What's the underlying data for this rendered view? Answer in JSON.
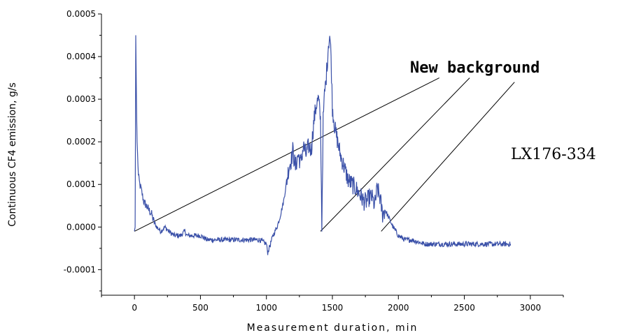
{
  "chart_data": {
    "type": "line",
    "title": "",
    "xlabel": "Measurement duration, min",
    "ylabel": "Continuous CF4 emission, g/s",
    "xlim": [
      -250,
      3250
    ],
    "ylim": [
      -0.00016,
      0.0005
    ],
    "x_ticks": [
      0,
      500,
      1000,
      1500,
      2000,
      2500,
      3000
    ],
    "x_tick_labels": [
      "0",
      "500",
      "1000",
      "1500",
      "2000",
      "2500",
      "3000"
    ],
    "y_ticks": [
      -0.0001,
      0.0,
      0.0001,
      0.0002,
      0.0003,
      0.0004,
      0.0005
    ],
    "y_tick_labels": [
      "-0.0001",
      "0.0000",
      "0.0001",
      "0.0002",
      "0.0003",
      "0.0004",
      "0.0005"
    ],
    "grid": false,
    "series": [
      {
        "color": "#3a50a8",
        "x": [
          0,
          5,
          10,
          15,
          20,
          30,
          40,
          50,
          70,
          90,
          110,
          130,
          150,
          170,
          200,
          230,
          260,
          300,
          350,
          380,
          400,
          450,
          500,
          550,
          600,
          650,
          700,
          750,
          800,
          850,
          900,
          950,
          1000,
          1010,
          1030,
          1050,
          1080,
          1100,
          1130,
          1150,
          1170,
          1190,
          1200,
          1220,
          1240,
          1260,
          1280,
          1300,
          1320,
          1340,
          1360,
          1380,
          1395,
          1410,
          1420,
          1430,
          1440,
          1450,
          1460,
          1470,
          1480,
          1490,
          1500,
          1520,
          1540,
          1560,
          1580,
          1600,
          1620,
          1650,
          1680,
          1700,
          1720,
          1740,
          1760,
          1780,
          1800,
          1820,
          1840,
          1860,
          1880,
          1900,
          1930,
          1960,
          2000,
          2050,
          2100,
          2200,
          2300,
          2400,
          2500,
          2600,
          2700,
          2800,
          2850
        ],
        "y": [
          -1e-05,
          0.0,
          0.00045,
          0.0003,
          0.0002,
          0.00012,
          0.0001,
          9e-05,
          6e-05,
          5e-05,
          4e-05,
          3e-05,
          1e-05,
          0.0,
          -1e-05,
          0.0,
          -1e-05,
          -2e-05,
          -2e-05,
          -1e-05,
          -2e-05,
          -2e-05,
          -2e-05,
          -3e-05,
          -3e-05,
          -3e-05,
          -3e-05,
          -3e-05,
          -3e-05,
          -3e-05,
          -3e-05,
          -3e-05,
          -4e-05,
          -6e-05,
          -4e-05,
          -2e-05,
          0.0,
          2e-05,
          6e-05,
          0.0001,
          0.00014,
          0.00016,
          0.00018,
          0.00014,
          0.00017,
          0.00015,
          0.00019,
          0.00017,
          0.00019,
          0.00018,
          0.00025,
          0.00029,
          0.0003,
          0.00025,
          0.0,
          0.00025,
          0.00031,
          0.00034,
          0.00038,
          0.00043,
          0.00045,
          0.0004,
          0.00028,
          0.00023,
          0.0002,
          0.00017,
          0.00015,
          0.00013,
          0.00011,
          0.0001,
          9e-05,
          8e-05,
          7e-05,
          6e-05,
          6e-05,
          7e-05,
          7e-05,
          5e-05,
          9e-05,
          7e-05,
          3e-05,
          4e-05,
          2e-05,
          0.0,
          -2e-05,
          -3e-05,
          -3e-05,
          -4e-05,
          -4e-05,
          -4e-05,
          -4e-05,
          -4e-05,
          -4e-05,
          -4e-05,
          -4e-05
        ]
      }
    ],
    "background_lines": [
      {
        "x": [
          0,
          2310
        ],
        "y": [
          -1e-05,
          0.00035
        ]
      },
      {
        "x": [
          1410,
          2540
        ],
        "y": [
          -1e-05,
          0.00035
        ]
      },
      {
        "x": [
          1870,
          2880
        ],
        "y": [
          -1e-05,
          0.00034
        ]
      }
    ],
    "annotations": [
      {
        "text": "New background",
        "x": 2050,
        "y": 0.00037
      },
      {
        "text": "LX176-334",
        "x": 2880,
        "y": 0.00017
      }
    ]
  }
}
